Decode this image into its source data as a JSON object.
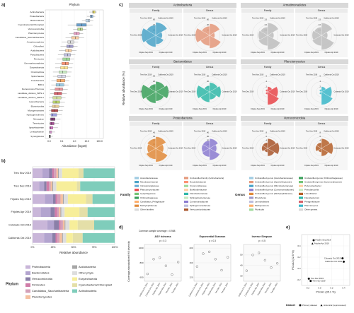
{
  "chart_data": [
    {
      "type": "box",
      "panel": "a)",
      "legend_title": "Phylum",
      "xlabel": "Abundance (log10)",
      "log": true,
      "xlim": [
        0.005,
        200
      ],
      "xticks": [
        {
          "value": 0.01,
          "label": "0.0"
        },
        0.1,
        {
          "value": 1,
          "label": "1.0"
        },
        {
          "value": 10,
          "label": "10.0"
        },
        {
          "value": 100,
          "label": "100.0"
        }
      ],
      "categories": [
        "Actinobacteria",
        "Proteobacteria",
        "Bacteroidetes",
        "Cyanobacteria/Chloroplast",
        "Verrucomicrobia",
        "Planctomycetes",
        "Candidatus_Saccharibacteria",
        "Armatimonadetes",
        "Chloroflexi",
        "Acidobacteria",
        "Parcubacteria",
        "Firmicutes",
        "Gemmatimonadetes",
        "Euryarchaeota",
        "Omnitrophica",
        "Spirochaetes",
        "Fusobacteria",
        "BRC1",
        "Deinococcus-Thermus",
        "candidate_division_WPS-1",
        "candidate_division_WPS-2",
        "Latescibacteria",
        "Elusimicrobia",
        "Microgenomates",
        "Hydrogenedentes",
        "Nitrospirae",
        "Tenericutes",
        "Ignavibacteriae",
        "Lentisphaerae",
        "Synergistetes"
      ],
      "lo": [
        15,
        10,
        4,
        0.3,
        0.8,
        0.4,
        0.2,
        0.1,
        0.08,
        0.06,
        0.05,
        0.04,
        0.03,
        0.03,
        0.02,
        0.02,
        0.015,
        0.015,
        0.012,
        0.012,
        0.01,
        0.01,
        0.01,
        0.01,
        0.01,
        0.01,
        0.01,
        0.01,
        0.01,
        0.01
      ],
      "q1": [
        28,
        18,
        8,
        1.5,
        1.8,
        0.9,
        0.6,
        0.3,
        0.25,
        0.2,
        0.15,
        0.12,
        0.1,
        0.08,
        0.06,
        0.05,
        0.04,
        0.035,
        0.03,
        0.025,
        0.02,
        0.02,
        0.018,
        0.015,
        0.014,
        0.013,
        0.012,
        0.011,
        0.011,
        0.01
      ],
      "median": [
        36,
        24,
        12,
        4,
        3,
        1.5,
        1.2,
        0.5,
        0.45,
        0.35,
        0.3,
        0.25,
        0.2,
        0.15,
        0.12,
        0.1,
        0.08,
        0.07,
        0.06,
        0.05,
        0.04,
        0.035,
        0.03,
        0.025,
        0.02,
        0.018,
        0.015,
        0.013,
        0.012,
        0.011
      ],
      "q3": [
        45,
        30,
        17,
        9,
        4.5,
        2.5,
        2.2,
        0.9,
        0.8,
        0.6,
        0.5,
        0.45,
        0.35,
        0.3,
        0.25,
        0.2,
        0.18,
        0.15,
        0.12,
        0.1,
        0.09,
        0.07,
        0.06,
        0.05,
        0.04,
        0.03,
        0.025,
        0.02,
        0.016,
        0.013
      ],
      "hi": [
        60,
        45,
        32,
        28,
        9,
        5,
        6,
        2,
        1.8,
        1.5,
        1.2,
        1,
        0.8,
        0.7,
        0.6,
        0.5,
        0.4,
        0.35,
        0.3,
        0.25,
        0.2,
        0.18,
        0.15,
        0.12,
        0.1,
        0.08,
        0.06,
        0.05,
        0.03,
        0.02
      ],
      "colors": [
        "#e3d96b",
        "#8cb3d9",
        "#c6dbef",
        "#6a9fcb",
        "#b8d88b",
        "#e6a0c4",
        "#f4c9a0",
        "#d9d9d9",
        "#9e9ac8",
        "#fdd0a2",
        "#bcbddc",
        "#a1d99b",
        "#fc9272",
        "#fee391",
        "#c7e9c0",
        "#dadaeb",
        "#fdae6b",
        "#9ecae1",
        "#e7969c",
        "#d6616b",
        "#cedb9c",
        "#b5cf6b",
        "#e7cb94",
        "#ad494a",
        "#9c9ede",
        "#7b4173",
        "#a55194",
        "#ce6dbd",
        "#de9ed6",
        "#636363"
      ]
    },
    {
      "type": "bar",
      "panel": "b)",
      "orientation": "horizontal",
      "stacked": true,
      "xlabel": "Relative abundance",
      "legend_title": "Phylum",
      "xlim": [
        0,
        100
      ],
      "xticks": [
        {
          "value": 0,
          "label": "0%"
        },
        {
          "value": 25,
          "label": "25%"
        },
        {
          "value": 50,
          "label": "50%"
        },
        {
          "value": 75,
          "label": "75%"
        },
        {
          "value": 100,
          "label": "100%"
        }
      ],
      "categories": [
        "Tres Nov 2019",
        "Tres Dec 2019",
        "Frijoles Sep 2019",
        "Frijoles Apr 2019",
        "Colorado Oct 2019",
        "California Oct 2019"
      ],
      "series": [
        {
          "name": "Proteobacteria",
          "color": "#c9b6d9",
          "values": [
            12,
            8,
            15,
            10,
            18,
            14
          ]
        },
        {
          "name": "Bacteroidetes",
          "color": "#b3a4cf",
          "values": [
            8,
            6,
            10,
            12,
            8,
            10
          ]
        },
        {
          "name": "Verrucomicrobia",
          "color": "#8a7fa8",
          "values": [
            4,
            3,
            3,
            5,
            6,
            4
          ]
        },
        {
          "name": "Firmicutes",
          "color": "#d07ca8",
          "values": [
            2,
            3,
            2,
            3,
            2,
            2
          ]
        },
        {
          "name": "Candidatus_Saccharibacteria",
          "color": "#d4a0b8",
          "values": [
            3,
            2,
            4,
            2,
            3,
            3
          ]
        },
        {
          "name": "Planctomycetes",
          "color": "#f5c0a0",
          "values": [
            2,
            2,
            3,
            2,
            2,
            3
          ]
        },
        {
          "name": "Acidobacteria",
          "color": "#a6a6a6",
          "values": [
            1,
            1,
            1,
            1,
            1,
            1
          ]
        },
        {
          "name": "Other phyla",
          "color": "#dddddd",
          "values": [
            4,
            4,
            5,
            4,
            5,
            4
          ]
        },
        {
          "name": "Euryarchaeota",
          "color": "#f7ee9a",
          "values": [
            20,
            25,
            22,
            18,
            10,
            8
          ]
        },
        {
          "name": "Cyanobacteria/Chloroplast",
          "color": "#e4dfa8",
          "values": [
            6,
            4,
            8,
            10,
            20,
            12
          ]
        },
        {
          "name": "Actinobacteria",
          "color": "#7fcdbb",
          "values": [
            38,
            42,
            27,
            33,
            25,
            39
          ]
        }
      ]
    },
    {
      "type": "rose",
      "panel": "c)",
      "ylabel": "Relative abundance (%)",
      "sites": [
        "Tres Nov 2019",
        "California Oct 2019",
        "Colorado Oct 2019",
        "Frijoles Apr 2019",
        "Frijoles Sep 2019",
        "Tres Dec 2019"
      ],
      "groups": [
        {
          "phylum": "Actinobacteria",
          "rlim": [
            0,
            60
          ],
          "rticks": [
            20,
            40,
            60
          ],
          "panels": [
            {
              "level": "Family",
              "color": "#4aa3c8",
              "values": [
                40,
                50,
                25,
                35,
                45,
                55
              ]
            },
            {
              "level": "Genus",
              "color": "#e4987a",
              "values": [
                35,
                45,
                20,
                50,
                40,
                55
              ]
            }
          ]
        },
        {
          "phylum": "Armatimonadetes",
          "rlim": [
            0,
            1.5
          ],
          "rticks": [
            0.5,
            {
              "value": 1,
              "label": "1.0"
            },
            1.5
          ],
          "panels": [
            {
              "level": "Family",
              "color": "#bdbdbd",
              "values": [
                0.8,
                1.2,
                0.6,
                1.4,
                1.0,
                0.9
              ]
            },
            {
              "level": "Genus",
              "color": "#bdbdbd",
              "values": [
                0.8,
                1.2,
                0.6,
                1.4,
                1.0,
                0.9
              ]
            }
          ]
        },
        {
          "phylum": "Bacteroidetes",
          "rlim": [
            0,
            30
          ],
          "rticks": [
            10,
            20,
            30
          ],
          "panels": [
            {
              "level": "Family",
              "color": "#3aa05a",
              "values": [
                15,
                20,
                25,
                18,
                22,
                28
              ]
            },
            {
              "level": "Genus",
              "color": "#30b8a8",
              "values": [
                12,
                18,
                22,
                15,
                20,
                25
              ]
            }
          ]
        },
        {
          "phylum": "Planctomycetes",
          "rlim": [
            0,
            6
          ],
          "rticks": [
            2,
            4,
            6
          ],
          "panels": [
            {
              "level": "Family",
              "color": "#e8454a",
              "values": [
                1,
                2,
                4,
                5,
                1,
                0.5
              ]
            },
            {
              "level": "Genus",
              "color": "#3ab7c9",
              "values": [
                1,
                2,
                4,
                5,
                1,
                0.5
              ]
            }
          ]
        },
        {
          "phylum": "Proteobacteria",
          "rlim": [
            0,
            40
          ],
          "rticks": [
            10,
            20,
            30,
            40
          ],
          "panels": [
            {
              "level": "Family",
              "color": "#e08a3a",
              "values": [
                25,
                30,
                20,
                35,
                28,
                22
              ]
            },
            {
              "level": "Genus",
              "color": "#8a7ad0",
              "values": [
                20,
                25,
                18,
                30,
                22,
                20
              ]
            }
          ]
        },
        {
          "phylum": "Verrucomicrobia",
          "rlim": [
            0,
            8
          ],
          "rticks": [
            2,
            4,
            6,
            8
          ],
          "panels": [
            {
              "level": "Family",
              "color": "#a8552a",
              "values": [
                3,
                5,
                6,
                4,
                2,
                3
              ]
            },
            {
              "level": "Genus",
              "color": "#b5602a",
              "values": [
                3,
                5,
                6,
                4,
                2,
                3
              ]
            }
          ]
        }
      ],
      "legends": [
        {
          "title": "Family",
          "entries": [
            {
              "name": "Acetobacteraceae",
              "color": "#9ecae1"
            },
            {
              "name": "Microbacteriaceae",
              "color": "#4aa3c8"
            },
            {
              "name": "Intrasporangiaceae",
              "color": "#6baed6"
            },
            {
              "name": "Planctomycetaceae",
              "color": "#e8454a"
            },
            {
              "name": "Cytophagaceae",
              "color": "#74c476"
            },
            {
              "name": "Chitinophagaceae",
              "color": "#3aa05a"
            },
            {
              "name": "Candidatus_Pelagibacter",
              "color": "#fdae6b"
            },
            {
              "name": "Methylophilaceae",
              "color": "#e08a3a"
            },
            {
              "name": "Other families",
              "color": "#d9d9d9"
            },
            {
              "name": "Unclassified family (Actinobacteria)",
              "color": "#e4987a"
            },
            {
              "name": "Nocardioidaceae",
              "color": "#fc9272"
            },
            {
              "name": "Cryomorphaceae",
              "color": "#a1d99b"
            },
            {
              "name": "Burkholderiaceae",
              "color": "#fdd0a2"
            },
            {
              "name": "Flavobacteriaceae",
              "color": "#30b8a8"
            },
            {
              "name": "Sphingobacteriaceae",
              "color": "#c7e9c0"
            },
            {
              "name": "Comamonadaceae",
              "color": "#8a7ad0"
            },
            {
              "name": "Sphingomonadaceae",
              "color": "#bcbddc"
            },
            {
              "name": "Verrucomicrobiaceae",
              "color": "#a8552a"
            }
          ]
        },
        {
          "title": "Genus",
          "entries": [
            {
              "name": "Unclassified genus (Acetobacteraceae)",
              "color": "#9ecae1"
            },
            {
              "name": "Unclassified genus (Sporichthyaceae)",
              "color": "#e4987a"
            },
            {
              "name": "Unclassified genus (Microbacteriaceae)",
              "color": "#4aa3c8"
            },
            {
              "name": "Unclassified genus (Comamonadaceae)",
              "color": "#8a7ad0"
            },
            {
              "name": "Unclassified genus (Methylophilaceae)",
              "color": "#e08a3a"
            },
            {
              "name": "Rhodoferax",
              "color": "#9e9ac8"
            },
            {
              "name": "Limnohabitans",
              "color": "#bcbddc"
            },
            {
              "name": "Methylotenera",
              "color": "#fdae6b"
            },
            {
              "name": "Fluviicola",
              "color": "#a1d99b"
            },
            {
              "name": "Unclassified genus (Chitinophagaceae)",
              "color": "#3aa05a"
            },
            {
              "name": "Unclassified genus (Cryomorphaceae)",
              "color": "#74c476"
            },
            {
              "name": "Polynucleobacter",
              "color": "#fdd0a2"
            },
            {
              "name": "Pseudarcicella",
              "color": "#c7e9c0"
            },
            {
              "name": "Luteolibacter",
              "color": "#b5602a"
            },
            {
              "name": "Flavobacterium",
              "color": "#30b8a8"
            },
            {
              "name": "Phragmitibacter",
              "color": "#d6616b"
            },
            {
              "name": "Planctomyces",
              "color": "#3ab7c9"
            },
            {
              "name": "Other genera",
              "color": "#d9d9d9"
            }
          ]
        }
      ]
    },
    {
      "type": "point",
      "panel": "d)",
      "note": "Common sample coverage = 0.988",
      "ylabel": "Coverage-standardized Hill diversity",
      "categories": [
        "California Oct 2019",
        "Colorado Oct 2019",
        "Frijoles Apr 2019",
        "Frijoles Sep 2019",
        "Tres Dec 2019",
        "Tres Nov 2019"
      ],
      "panels": [
        {
          "title": "ASV richness",
          "subtitle": "p = 0.3",
          "ylim": [
            550,
            1050
          ],
          "yticks": [
            600,
            800,
            1000
          ],
          "values": [
            650,
            850,
            870,
            760,
            640,
            810
          ]
        },
        {
          "title": "Exponential Shannon",
          "subtitle": "p = 0.3",
          "ylim": [
            110,
            210
          ],
          "yticks": [
            120,
            160,
            200
          ],
          "values": [
            150,
            185,
            190,
            170,
            140,
            175
          ]
        },
        {
          "title": "Inverse Simpson",
          "subtitle": "p = 0.5",
          "ylim": [
            25,
            60
          ],
          "yticks": [
            30,
            40,
            50
          ],
          "values": [
            35,
            50,
            52,
            45,
            38,
            42
          ]
        }
      ]
    },
    {
      "type": "scatter",
      "panel": "e)",
      "xlabel": "PCoA1 (35.1 %)",
      "ylabel": "PCoA2 (22.5 %)",
      "legend_title": "Dataset",
      "xlim": [
        -0.3,
        0.5
      ],
      "xticks": [
        -0.2,
        {
          "value": 0,
          "label": "0.0"
        },
        0.2,
        0.4
      ],
      "ylim": [
        -0.3,
        0.6
      ],
      "yticks": [
        -0.2,
        {
          "value": 0,
          "label": "0.0"
        },
        0.2,
        0.4
      ],
      "series": [
        {
          "name": "Primary dataset",
          "marker": "circle",
          "color": "#111111",
          "x": [
            -0.1,
            0.38,
            0.4,
            -0.18,
            -0.15
          ],
          "y": [
            0.5,
            0.18,
            0.12,
            -0.18,
            -0.22
          ],
          "labels": [
            "Frijoles Sep 2019",
            "Colorado Oct 2019",
            "California Oct 2019",
            "Tres Dec 2019",
            "Tres Nov 2019"
          ]
        },
        {
          "name": "Historical (reprocessed)",
          "marker": "triangle",
          "color": "#111111",
          "x": [
            -0.12
          ],
          "y": [
            0.44
          ],
          "labels": [
            "Frijoles Apr 2019"
          ]
        }
      ]
    }
  ]
}
